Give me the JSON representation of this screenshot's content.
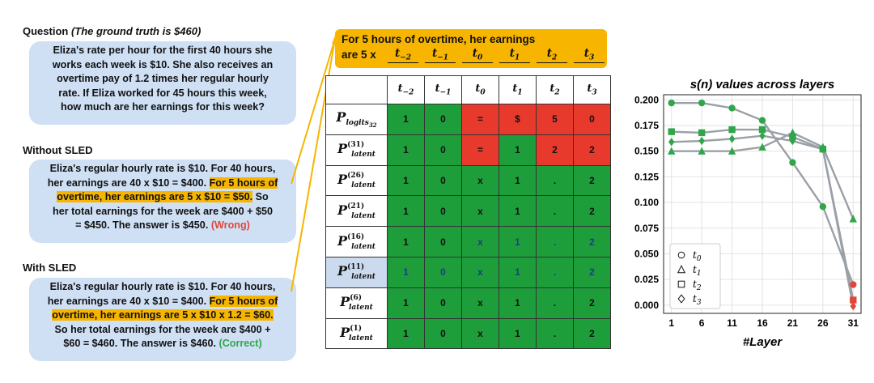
{
  "question": {
    "title": "Question",
    "note": "(The ground truth is $460)",
    "lines": [
      "Eliza's rate per hour for the first 40 hours she",
      "works each week is $10. She also receives an",
      "overtime pay of 1.2 times her regular hourly",
      "rate. If Eliza worked for 45 hours this week,",
      "how much are her earnings for this week?"
    ]
  },
  "without_sled": {
    "title": "Without SLED",
    "l1": "Eliza's regular hourly rate is $10. For 40 hours,",
    "l2a": "her earnings are 40 x $10 = $400. ",
    "l2b": "For 5 hours of",
    "l3a": "overtime, her earnings are 5 x $10 = $50.",
    "l3b": " So",
    "l4": "her total earnings for the week are $400 + $50",
    "l5a": "= $450. The answer is $450. ",
    "l5b": "(Wrong)"
  },
  "with_sled": {
    "title": "With SLED",
    "l1": "Eliza's regular hourly rate is $10. For 40 hours,",
    "l2a": "her earnings are 40 x $10 = $400. ",
    "l2b": "For 5 hours of",
    "l3": "overtime, her earnings are 5 x $10 x 1.2 = $60.",
    "l4": "So her total earnings for the week are $400 +",
    "l5a": "$60 = $460. The answer is $460. ",
    "l5b": "(Correct)"
  },
  "overtime_box": {
    "line1": "For 5 hours of overtime, her earnings",
    "line2": "are 5 x",
    "tokens": [
      {
        "t": "t",
        "s": "−2"
      },
      {
        "t": "t",
        "s": "−1"
      },
      {
        "t": "t",
        "s": "0"
      },
      {
        "t": "t",
        "s": "1"
      },
      {
        "t": "t",
        "s": "2"
      },
      {
        "t": "t",
        "s": "3"
      }
    ]
  },
  "table": {
    "columns": [
      {
        "t": "t",
        "s": "−2"
      },
      {
        "t": "t",
        "s": "−1"
      },
      {
        "t": "t",
        "s": "0"
      },
      {
        "t": "t",
        "s": "1"
      },
      {
        "t": "t",
        "s": "2"
      },
      {
        "t": "t",
        "s": "3"
      }
    ],
    "rows": [
      {
        "label_sub": "logits",
        "label_subsub": "32",
        "label_sup": "",
        "cells": [
          "1",
          "0",
          "=",
          "$",
          "5",
          "0"
        ],
        "colors": [
          "green",
          "green",
          "red",
          "red",
          "red",
          "red"
        ]
      },
      {
        "label_sub": "latent",
        "label_sup": "(31)",
        "cells": [
          "1",
          "0",
          "=",
          "1",
          "2",
          "2"
        ],
        "colors": [
          "green",
          "green",
          "red",
          "green",
          "red",
          "red"
        ]
      },
      {
        "label_sub": "latent",
        "label_sup": "(26)",
        "cells": [
          "1",
          "0",
          "x",
          "1",
          ".",
          "2"
        ],
        "colors": [
          "green",
          "green",
          "green",
          "green",
          "green",
          "green"
        ]
      },
      {
        "label_sub": "latent",
        "label_sup": "(21)",
        "cells": [
          "1",
          "0",
          "x",
          "1",
          ".",
          "2"
        ],
        "colors": [
          "green",
          "green",
          "green",
          "green",
          "green",
          "green"
        ]
      },
      {
        "label_sub": "latent",
        "label_sup": "(16)",
        "cells": [
          "1",
          "0",
          "x",
          "1",
          ".",
          "2"
        ],
        "colors": [
          "green",
          "green",
          "green",
          "green",
          "green",
          "green"
        ]
      },
      {
        "label_sub": "latent",
        "label_sup": "(11)",
        "cells": [
          "1",
          "0",
          "x",
          "1",
          ".",
          "2"
        ],
        "colors": [
          "green",
          "green",
          "green",
          "green",
          "green",
          "green"
        ]
      },
      {
        "label_sub": "latent",
        "label_sup": "(6)",
        "cells": [
          "1",
          "0",
          "x",
          "1",
          ".",
          "2"
        ],
        "colors": [
          "green",
          "green",
          "green",
          "green",
          "green",
          "green"
        ]
      },
      {
        "label_sub": "latent",
        "label_sup": "(1)",
        "cells": [
          "1",
          "0",
          "x",
          "1",
          ".",
          "2"
        ],
        "colors": [
          "green",
          "green",
          "green",
          "green",
          "green",
          "green"
        ]
      }
    ],
    "green": "#1e9e3a",
    "red": "#e83a2c"
  },
  "chart_data": {
    "type": "line",
    "title": "s(n) values across layers",
    "xlabel": "#Layer",
    "ylabel": "",
    "x": [
      1,
      6,
      11,
      16,
      21,
      26,
      31
    ],
    "xticks": [
      "1",
      "6",
      "11",
      "16",
      "21",
      "26",
      "31"
    ],
    "yticks": [
      "0.000",
      "0.025",
      "0.050",
      "0.075",
      "0.100",
      "0.125",
      "0.150",
      "0.175",
      "0.200"
    ],
    "ylim": [
      -0.008,
      0.205
    ],
    "grid": true,
    "legend_position": "bottom-left",
    "series": [
      {
        "name": "t0",
        "marker": "circle",
        "values": [
          0.197,
          0.197,
          0.192,
          0.18,
          0.139,
          0.096,
          0.02
        ],
        "final_color": "red"
      },
      {
        "name": "t1",
        "marker": "triangle",
        "values": [
          0.15,
          0.15,
          0.15,
          0.154,
          0.168,
          0.154,
          0.084
        ],
        "final_color": "green"
      },
      {
        "name": "t2",
        "marker": "square",
        "values": [
          0.169,
          0.168,
          0.171,
          0.171,
          0.164,
          0.152,
          0.005
        ],
        "final_color": "red"
      },
      {
        "name": "t3",
        "marker": "diamond",
        "values": [
          0.159,
          0.16,
          0.162,
          0.165,
          0.16,
          0.152,
          -0.001
        ],
        "final_color": "red"
      }
    ],
    "line_color": "#9aa0a6",
    "marker_color": "#2fa64a",
    "final_red": "#e0473a"
  }
}
